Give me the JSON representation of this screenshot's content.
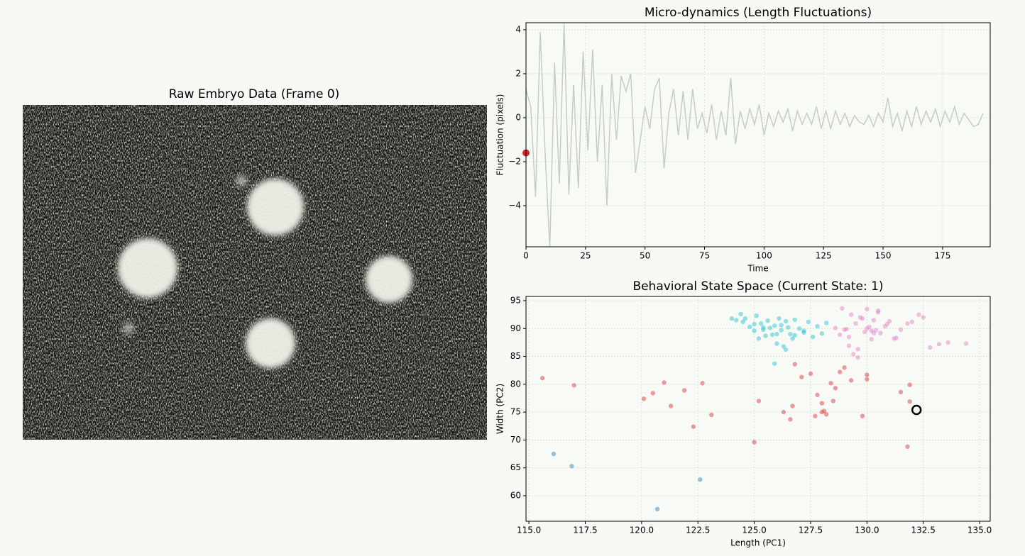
{
  "chart_data": [
    {
      "type": "image",
      "title": "Raw Embryo Data (Frame 0)"
    },
    {
      "type": "line",
      "title": "Micro-dynamics (Length Fluctuations)",
      "xlabel": "Time",
      "ylabel": "Fluctuation (pixels)",
      "color": "#c5cec2",
      "x": [
        0,
        2,
        4,
        6,
        8,
        10,
        12,
        14,
        16,
        18,
        20,
        22,
        24,
        26,
        28,
        30,
        32,
        34,
        36,
        38,
        40,
        42,
        44,
        46,
        48,
        50,
        52,
        54,
        56,
        58,
        60,
        62,
        64,
        66,
        68,
        70,
        72,
        74,
        76,
        78,
        80,
        82,
        84,
        86,
        88,
        90,
        92,
        94,
        96,
        98,
        100,
        102,
        104,
        106,
        108,
        110,
        112,
        114,
        116,
        118,
        120,
        122,
        124,
        126,
        128,
        130,
        132,
        134,
        136,
        138,
        140,
        142,
        144,
        146,
        148,
        150,
        152,
        154,
        156,
        158,
        160,
        162,
        164,
        166,
        168,
        170,
        172,
        174,
        176,
        178,
        180,
        182,
        184,
        186,
        188,
        190,
        192
      ],
      "values": [
        1.3,
        0.5,
        -3.6,
        3.9,
        -1.5,
        -5.9,
        2.5,
        -3,
        4.3,
        -3.5,
        1.5,
        -3.2,
        3,
        -1.5,
        3.1,
        -2,
        1.5,
        -4,
        2,
        -1,
        1.9,
        1.2,
        2,
        -2.5,
        -1,
        0.5,
        -0.5,
        1.3,
        1.8,
        -2.3,
        0.2,
        1.3,
        -0.8,
        1.2,
        -1,
        1.3,
        -0.5,
        0.2,
        -0.7,
        0.6,
        -1,
        0.3,
        -0.8,
        1.8,
        -1.2,
        0.3,
        -0.5,
        0.4,
        -0.3,
        0.6,
        -0.8,
        0.2,
        -0.4,
        0.3,
        -0.2,
        0.4,
        -0.6,
        0.3,
        -0.3,
        0.2,
        -0.3,
        0.5,
        -0.5,
        0.3,
        -0.5,
        0.3,
        -0.3,
        0.2,
        -0.4,
        0.1,
        -0.2,
        -0.3,
        0.1,
        -0.4,
        0.2,
        -0.2,
        0.9,
        -0.4,
        0.2,
        -0.6,
        0.3,
        -0.4,
        0.5,
        -0.3,
        0.3,
        -0.2,
        0.4,
        -0.4,
        0.3,
        -0.2,
        0.5,
        -0.3,
        0.2,
        -0.1,
        -0.4,
        -0.3,
        0.2
      ],
      "marker": {
        "x": 0,
        "y": -1.6,
        "color": "#d62728"
      },
      "xlim": [
        0,
        195
      ],
      "xticks": [
        0,
        25,
        50,
        75,
        100,
        125,
        150,
        175
      ],
      "ylim": [
        -5.87,
        4.32
      ],
      "yticks": [
        {
          "value": -4,
          "label": "−4"
        },
        {
          "value": -2,
          "label": "−2"
        },
        0,
        2,
        4
      ],
      "grid": true
    },
    {
      "type": "scatter",
      "title": "Behavioral State Space (Current State: 1)",
      "xlabel": "Length (PC1)",
      "ylabel": "Width (PC2)",
      "series": [
        {
          "color": "#17becf",
          "x": [
            124.0,
            124.2,
            124.4,
            124.5,
            124.6,
            124.8,
            125.0,
            125.1,
            125.2,
            125.3,
            125.4,
            125.5,
            125.6,
            125.7,
            125.8,
            125.9,
            126.0,
            126.1,
            126.2,
            126.3,
            126.4,
            126.5,
            126.6,
            126.7,
            126.8,
            127.0,
            127.2,
            127.4,
            127.6,
            127.8,
            128.0,
            128.2,
            125.0,
            125.4,
            126.0,
            126.4,
            126.8,
            127.2,
            125.9,
            126.2
          ],
          "y": [
            91.8,
            91.5,
            92.6,
            91.2,
            91.8,
            90.3,
            89.6,
            92.3,
            88.2,
            90.9,
            89.8,
            88.7,
            91.4,
            90.1,
            88.9,
            90.5,
            87.3,
            91.8,
            89.7,
            86.8,
            91.3,
            90.2,
            89.0,
            88.2,
            91.6,
            90.0,
            89.3,
            91.2,
            88.5,
            90.4,
            89.1,
            91.0,
            90.8,
            90.2,
            89.0,
            86.2,
            88.8,
            89.6,
            83.7,
            90.6
          ]
        },
        {
          "color": "#e377c2",
          "x": [
            128.6,
            128.9,
            129.0,
            129.2,
            129.3,
            129.5,
            129.6,
            129.8,
            129.9,
            130.0,
            130.1,
            130.2,
            130.3,
            130.4,
            130.5,
            130.6,
            130.8,
            131.0,
            131.2,
            131.5,
            131.8,
            132.0,
            132.3,
            132.5,
            132.8,
            133.2,
            133.6,
            134.4,
            129.1,
            129.4,
            129.7,
            130.0,
            130.2,
            130.5,
            129.2,
            130.9,
            131.3,
            128.8,
            129.6,
            130.3
          ],
          "y": [
            90.1,
            93.6,
            89.8,
            88.5,
            92.5,
            90.9,
            86.3,
            91.8,
            89.4,
            93.5,
            90.3,
            88.1,
            91.5,
            89.7,
            92.9,
            89.2,
            90.4,
            91.3,
            88.2,
            89.8,
            90.9,
            91.2,
            92.5,
            92.0,
            86.6,
            87.2,
            87.5,
            87.3,
            89.9,
            85.4,
            92.0,
            90.0,
            89.6,
            93.2,
            86.9,
            90.8,
            88.3,
            88.9,
            84.8,
            89.2
          ]
        },
        {
          "color": "#d62728",
          "x": [
            115.6,
            117,
            120.1,
            120.5,
            121,
            121.3,
            121.9,
            122.3,
            122.7,
            123.1,
            125,
            125.2,
            126.3,
            126.6,
            126.7,
            126.8,
            127.1,
            127.5,
            127.7,
            127.8,
            128,
            128.1,
            128.2,
            128.4,
            128.5,
            128.6,
            128.8,
            129,
            129.3,
            129.8,
            130,
            130,
            131.5,
            131.8,
            131.9,
            131.9,
            128
          ],
          "y": [
            81.1,
            79.8,
            77.4,
            78.4,
            80.3,
            76.1,
            78.9,
            72.4,
            80.2,
            74.5,
            69.6,
            77,
            75,
            73.7,
            76.1,
            83.6,
            81.3,
            81.9,
            74.3,
            78.1,
            76.6,
            75.2,
            74.6,
            80.2,
            77,
            79.3,
            82.2,
            83,
            80.7,
            74.3,
            81.7,
            80.9,
            78.6,
            68.8,
            79.9,
            76.9,
            75
          ]
        },
        {
          "color": "#1f77b4",
          "x": [
            116.1,
            116.9,
            120.7,
            122.6
          ],
          "y": [
            67.5,
            65.3,
            57.6,
            62.9
          ]
        }
      ],
      "current": {
        "x": 132.2,
        "y": 75.4
      },
      "xlim": [
        114.87,
        135.47
      ],
      "xticks": [
        {
          "value": 115,
          "label": "115.0"
        },
        {
          "value": 117.5,
          "label": "117.5"
        },
        {
          "value": 120,
          "label": "120.0"
        },
        {
          "value": 122.5,
          "label": "122.5"
        },
        {
          "value": 125,
          "label": "125.0"
        },
        {
          "value": 127.5,
          "label": "127.5"
        },
        {
          "value": 130,
          "label": "130.0"
        },
        {
          "value": 132.5,
          "label": "132.5"
        },
        {
          "value": 135,
          "label": "135.0"
        }
      ],
      "ylim": [
        55.42,
        95.76
      ],
      "yticks": [
        60,
        65,
        70,
        75,
        80,
        85,
        90,
        95
      ],
      "grid": true
    }
  ]
}
